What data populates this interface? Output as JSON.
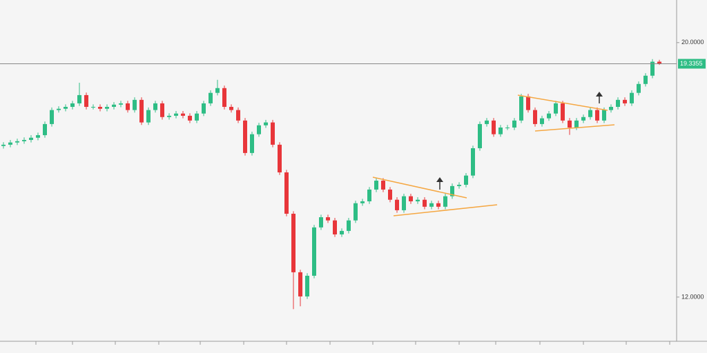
{
  "chart_data": {
    "type": "candlestick",
    "up_color": "#2ebd85",
    "down_color": "#e8363a",
    "ylim": [
      10.61,
      21.34
    ],
    "yticks": [
      {
        "value": 20,
        "label": "20.0000"
      },
      {
        "value": 12,
        "label": "12.0000"
      }
    ],
    "last_price": {
      "value": 19.3355,
      "label": "19.3355"
    },
    "open": [
      16.75,
      16.79,
      16.86,
      16.9,
      16.94,
      17.01,
      17.09,
      17.44,
      17.88,
      17.92,
      17.98,
      18.09,
      18.35,
      17.98,
      17.98,
      17.92,
      17.98,
      18.05,
      18.09,
      17.88,
      18.2,
      17.49,
      17.88,
      18.09,
      17.66,
      17.7,
      17.77,
      17.7,
      17.55,
      17.77,
      18.09,
      18.42,
      18.57,
      17.98,
      17.88,
      17.55,
      16.53,
      17.12,
      17.4,
      17.49,
      16.79,
      15.92,
      14.62,
      12.78,
      12.02,
      12.67,
      14.19,
      14.51,
      14.41,
      13.97,
      14.08,
      14.41,
      14.95,
      15.01,
      15.38,
      15.66,
      15.38,
      15.06,
      14.73,
      15.17,
      15.01,
      15.06,
      14.84,
      14.95,
      14.84,
      15.17,
      15.49,
      15.53,
      15.82,
      16.68,
      17.44,
      17.55,
      17.12,
      17.33,
      17.33,
      17.55,
      18.31,
      17.88,
      17.44,
      17.62,
      17.77,
      18.09,
      17.55,
      17.33,
      17.55,
      17.66,
      17.88,
      17.55,
      17.88,
      17.98,
      18.2,
      18.09,
      18.42,
      18.7,
      18.96,
      19.4
    ],
    "close": [
      16.79,
      16.86,
      16.9,
      16.94,
      17.01,
      17.09,
      17.44,
      17.88,
      17.92,
      17.98,
      18.09,
      18.35,
      17.98,
      17.98,
      17.92,
      17.98,
      18.05,
      18.09,
      17.88,
      18.2,
      17.49,
      17.88,
      18.09,
      17.66,
      17.7,
      17.77,
      17.7,
      17.55,
      17.77,
      18.09,
      18.42,
      18.57,
      17.98,
      17.88,
      17.55,
      16.53,
      17.12,
      17.4,
      17.49,
      16.79,
      15.92,
      14.62,
      12.78,
      12.02,
      12.67,
      14.19,
      14.51,
      14.41,
      13.97,
      14.08,
      14.41,
      14.95,
      15.01,
      15.38,
      15.66,
      15.38,
      15.06,
      14.73,
      15.17,
      15.01,
      15.06,
      14.84,
      14.95,
      14.84,
      15.17,
      15.49,
      15.53,
      15.82,
      16.68,
      17.44,
      17.55,
      17.12,
      17.33,
      17.33,
      17.55,
      18.31,
      17.88,
      17.44,
      17.62,
      17.77,
      18.09,
      17.55,
      17.33,
      17.55,
      17.66,
      17.88,
      17.55,
      17.88,
      17.98,
      18.2,
      18.09,
      18.42,
      18.7,
      18.96,
      19.4,
      19.3355
    ],
    "high": [
      16.87,
      16.94,
      16.98,
      17.02,
      17.09,
      17.17,
      17.52,
      17.96,
      18.0,
      18.06,
      18.17,
      18.74,
      18.43,
      18.06,
      18.06,
      18.06,
      18.13,
      18.17,
      18.17,
      18.28,
      18.28,
      17.96,
      18.17,
      18.17,
      17.78,
      17.85,
      17.85,
      17.78,
      17.85,
      18.17,
      18.5,
      18.83,
      18.65,
      18.06,
      17.96,
      17.63,
      17.2,
      17.48,
      17.57,
      17.57,
      16.87,
      16.0,
      14.7,
      12.86,
      12.75,
      14.27,
      14.59,
      14.59,
      14.49,
      14.16,
      14.49,
      15.03,
      15.09,
      15.46,
      15.74,
      15.74,
      15.46,
      15.14,
      15.25,
      15.25,
      15.14,
      15.14,
      15.03,
      15.03,
      15.25,
      15.57,
      15.61,
      15.9,
      16.76,
      17.52,
      17.63,
      17.63,
      17.41,
      17.41,
      17.63,
      18.39,
      18.39,
      17.96,
      17.7,
      17.85,
      18.17,
      18.17,
      17.63,
      17.63,
      17.74,
      17.96,
      17.96,
      17.96,
      18.06,
      18.28,
      18.28,
      18.5,
      18.78,
      19.04,
      19.48,
      19.46
    ],
    "low": [
      16.67,
      16.71,
      16.78,
      16.82,
      16.86,
      16.93,
      17.01,
      17.36,
      17.8,
      17.84,
      17.9,
      18.01,
      17.9,
      17.9,
      17.84,
      17.84,
      17.9,
      17.97,
      17.8,
      17.8,
      17.41,
      17.41,
      17.8,
      17.58,
      17.58,
      17.62,
      17.62,
      17.47,
      17.47,
      17.69,
      18.01,
      18.34,
      17.9,
      17.8,
      17.47,
      16.45,
      16.45,
      17.04,
      17.32,
      16.71,
      15.84,
      14.54,
      11.62,
      11.71,
      11.94,
      12.59,
      14.11,
      14.33,
      13.89,
      13.89,
      14.0,
      14.33,
      14.87,
      14.93,
      15.3,
      15.3,
      14.98,
      14.65,
      14.65,
      14.93,
      14.93,
      14.76,
      14.76,
      14.76,
      14.76,
      15.09,
      15.41,
      15.45,
      15.74,
      16.6,
      17.36,
      17.04,
      17.04,
      17.25,
      17.25,
      17.47,
      17.8,
      17.36,
      17.36,
      17.54,
      17.69,
      17.47,
      17.1,
      17.25,
      17.47,
      17.58,
      17.47,
      17.47,
      17.8,
      17.9,
      18.01,
      18.01,
      18.34,
      18.62,
      18.88,
      19.3
    ]
  }
}
